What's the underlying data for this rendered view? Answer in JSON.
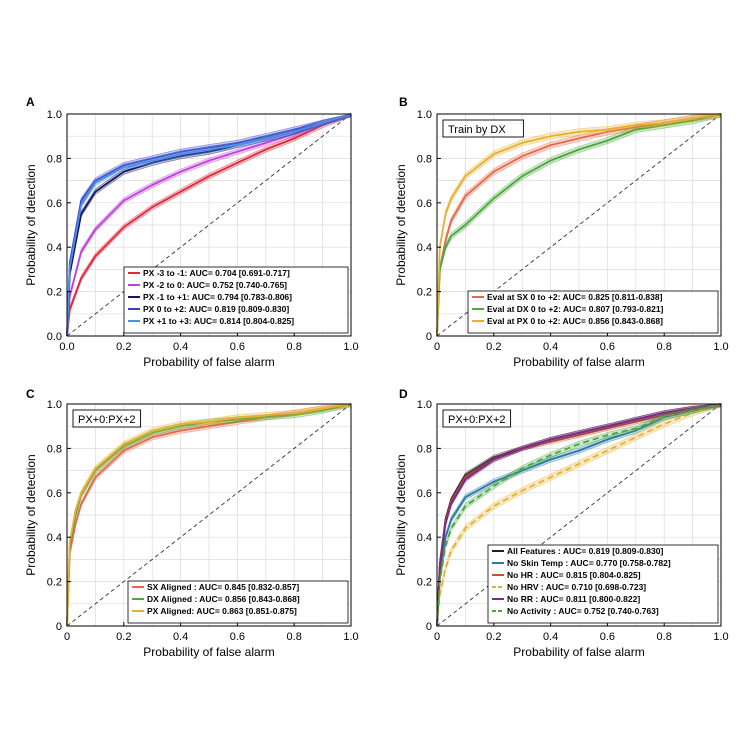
{
  "chart_data": [
    {
      "panel": "A",
      "type": "line",
      "inset_label": "",
      "xlabel": "Probability of false alarm",
      "ylabel": "Probability of detection",
      "xlim": [
        0,
        1
      ],
      "ylim": [
        0,
        1
      ],
      "xticks": [
        "0.0",
        "0.2",
        "0.4",
        "0.6",
        "0.8",
        "1.0"
      ],
      "yticks": [
        "0.0",
        "0.2",
        "0.4",
        "0.6",
        "0.8",
        "1.0"
      ],
      "grid": true,
      "legend": "bottom-right",
      "series": [
        {
          "name": "PX -3 to -1: AUC= 0.704 [0.691-0.717]",
          "color": "#e0283c",
          "band": 0.012,
          "dashed": false,
          "x": [
            0,
            0.01,
            0.05,
            0.1,
            0.2,
            0.3,
            0.4,
            0.5,
            0.6,
            0.7,
            0.8,
            0.9,
            1.0
          ],
          "y": [
            0,
            0.12,
            0.26,
            0.36,
            0.49,
            0.58,
            0.65,
            0.72,
            0.78,
            0.84,
            0.89,
            0.95,
            1.0
          ]
        },
        {
          "name": "PX -2 to 0: AUC= 0.752 [0.740-0.765]",
          "color": "#c040d8",
          "band": 0.012,
          "dashed": false,
          "x": [
            0,
            0.01,
            0.05,
            0.1,
            0.2,
            0.3,
            0.4,
            0.5,
            0.6,
            0.7,
            0.8,
            0.9,
            1.0
          ],
          "y": [
            0,
            0.18,
            0.38,
            0.48,
            0.61,
            0.68,
            0.74,
            0.79,
            0.83,
            0.87,
            0.91,
            0.96,
            1.0
          ]
        },
        {
          "name": "PX -1 to +1: AUC= 0.794 [0.783-0.806]",
          "color": "#141464",
          "band": 0.012,
          "dashed": false,
          "x": [
            0,
            0.01,
            0.05,
            0.1,
            0.2,
            0.3,
            0.4,
            0.5,
            0.6,
            0.7,
            0.8,
            0.9,
            1.0
          ],
          "y": [
            0,
            0.28,
            0.55,
            0.65,
            0.74,
            0.78,
            0.81,
            0.83,
            0.86,
            0.89,
            0.92,
            0.96,
            1.0
          ]
        },
        {
          "name": "PX 0 to +2: AUC= 0.819 [0.809-0.830]",
          "color": "#3c3cc8",
          "band": 0.012,
          "dashed": false,
          "x": [
            0,
            0.01,
            0.05,
            0.1,
            0.2,
            0.3,
            0.4,
            0.5,
            0.6,
            0.7,
            0.8,
            0.9,
            1.0
          ],
          "y": [
            0,
            0.33,
            0.61,
            0.7,
            0.77,
            0.8,
            0.83,
            0.85,
            0.87,
            0.9,
            0.93,
            0.96,
            1.0
          ]
        },
        {
          "name": "PX +1 to +3: AUC= 0.814 [0.804-0.825]",
          "color": "#4a90e8",
          "band": 0.012,
          "dashed": false,
          "x": [
            0,
            0.01,
            0.05,
            0.1,
            0.2,
            0.3,
            0.4,
            0.5,
            0.6,
            0.7,
            0.8,
            0.9,
            1.0
          ],
          "y": [
            0,
            0.31,
            0.59,
            0.69,
            0.76,
            0.79,
            0.82,
            0.84,
            0.86,
            0.89,
            0.92,
            0.96,
            1.0
          ]
        }
      ]
    },
    {
      "panel": "B",
      "type": "line",
      "inset_label": "Train by DX",
      "xlabel": "Probability of false alarm",
      "ylabel": "Probability of detection",
      "xlim": [
        0,
        1
      ],
      "ylim": [
        0,
        1
      ],
      "xticks": [
        "0",
        "0.2",
        "0.4",
        "0.6",
        "0.8",
        "1.0"
      ],
      "yticks": [
        "0",
        "0.2",
        "0.4",
        "0.6",
        "0.8",
        "1.0"
      ],
      "grid": true,
      "legend": "bottom-right",
      "series": [
        {
          "name": "Eval at SX 0 to +2: AUC= 0.825 [0.811-0.838]",
          "color": "#e8684a",
          "band": 0.014,
          "dashed": false,
          "x": [
            0,
            0.01,
            0.03,
            0.05,
            0.1,
            0.2,
            0.3,
            0.4,
            0.5,
            0.6,
            0.7,
            0.8,
            0.9,
            1.0
          ],
          "y": [
            0,
            0.3,
            0.43,
            0.52,
            0.63,
            0.74,
            0.81,
            0.86,
            0.89,
            0.92,
            0.94,
            0.96,
            0.98,
            1.0
          ]
        },
        {
          "name": "Eval at DX 0 to +2: AUC= 0.807 [0.793-0.821]",
          "color": "#4aa83c",
          "band": 0.014,
          "dashed": false,
          "x": [
            0,
            0.01,
            0.03,
            0.05,
            0.1,
            0.2,
            0.3,
            0.4,
            0.5,
            0.6,
            0.7,
            0.8,
            0.9,
            1.0
          ],
          "y": [
            0,
            0.3,
            0.4,
            0.45,
            0.5,
            0.62,
            0.72,
            0.79,
            0.84,
            0.88,
            0.93,
            0.95,
            0.97,
            1.0
          ]
        },
        {
          "name": "Eval at PX 0 to +2: AUC= 0.856 [0.843-0.868]",
          "color": "#e8b030",
          "band": 0.014,
          "dashed": false,
          "x": [
            0,
            0.01,
            0.03,
            0.05,
            0.1,
            0.2,
            0.3,
            0.4,
            0.5,
            0.6,
            0.7,
            0.8,
            0.9,
            1.0
          ],
          "y": [
            0,
            0.4,
            0.55,
            0.62,
            0.72,
            0.82,
            0.87,
            0.9,
            0.92,
            0.93,
            0.95,
            0.96,
            0.98,
            1.0
          ]
        }
      ]
    },
    {
      "panel": "C",
      "type": "line",
      "inset_label": "PX+0:PX+2",
      "xlabel": "Probability of false alarm",
      "ylabel": "Probability of detection",
      "xlim": [
        0,
        1
      ],
      "ylim": [
        0,
        1
      ],
      "xticks": [
        "0",
        "0.2",
        "0.4",
        "0.6",
        "0.8",
        "1.0"
      ],
      "yticks": [
        "0",
        "0.2",
        "0.4",
        "0.6",
        "0.8",
        "1.0"
      ],
      "grid": true,
      "legend": "bottom-right",
      "series": [
        {
          "name": "SX Aligned : AUC= 0.845 [0.832-0.857]",
          "color": "#e8684a",
          "band": 0.012,
          "dashed": false,
          "x": [
            0,
            0.01,
            0.03,
            0.05,
            0.1,
            0.2,
            0.3,
            0.4,
            0.5,
            0.6,
            0.7,
            0.8,
            0.9,
            1.0
          ],
          "y": [
            0,
            0.33,
            0.46,
            0.55,
            0.67,
            0.79,
            0.85,
            0.88,
            0.9,
            0.92,
            0.94,
            0.96,
            0.98,
            1.0
          ]
        },
        {
          "name": "DX Aligned : AUC= 0.856 [0.843-0.868]",
          "color": "#4aa83c",
          "band": 0.012,
          "dashed": false,
          "x": [
            0,
            0.01,
            0.03,
            0.05,
            0.1,
            0.2,
            0.3,
            0.4,
            0.5,
            0.6,
            0.7,
            0.8,
            0.9,
            1.0
          ],
          "y": [
            0,
            0.36,
            0.5,
            0.59,
            0.7,
            0.81,
            0.87,
            0.9,
            0.92,
            0.93,
            0.94,
            0.95,
            0.97,
            1.0
          ]
        },
        {
          "name": "PX Aligned: AUC= 0.863 [0.851-0.875]",
          "color": "#e8b030",
          "band": 0.012,
          "dashed": false,
          "x": [
            0,
            0.01,
            0.03,
            0.05,
            0.1,
            0.2,
            0.3,
            0.4,
            0.5,
            0.6,
            0.7,
            0.8,
            0.9,
            1.0
          ],
          "y": [
            0,
            0.38,
            0.52,
            0.6,
            0.71,
            0.82,
            0.88,
            0.91,
            0.92,
            0.94,
            0.95,
            0.96,
            0.98,
            1.0
          ]
        }
      ]
    },
    {
      "panel": "D",
      "type": "line",
      "inset_label": "PX+0:PX+2",
      "xlabel": "Probability of false alarm",
      "ylabel": "Probability of detection",
      "xlim": [
        0,
        1
      ],
      "ylim": [
        0,
        1
      ],
      "xticks": [
        "0",
        "0.2",
        "0.4",
        "0.6",
        "0.8",
        "1.0"
      ],
      "yticks": [
        "0",
        "0.2",
        "0.4",
        "0.6",
        "0.8",
        "1.0"
      ],
      "grid": true,
      "legend": "bottom-right",
      "series": [
        {
          "name": "All Features : AUC= 0.819 [0.809-0.830]",
          "color": "#202020",
          "band": 0.01,
          "dashed": false,
          "x": [
            0,
            0.01,
            0.03,
            0.05,
            0.1,
            0.2,
            0.3,
            0.4,
            0.5,
            0.6,
            0.7,
            0.8,
            0.9,
            1.0
          ],
          "y": [
            0,
            0.28,
            0.48,
            0.57,
            0.68,
            0.76,
            0.8,
            0.84,
            0.87,
            0.9,
            0.93,
            0.96,
            0.98,
            1.0
          ]
        },
        {
          "name": "No Skin Temp : AUC= 0.770 [0.758-0.782]",
          "color": "#2a7aa8",
          "band": 0.012,
          "dashed": false,
          "x": [
            0,
            0.01,
            0.03,
            0.05,
            0.1,
            0.2,
            0.3,
            0.4,
            0.5,
            0.6,
            0.7,
            0.8,
            0.9,
            1.0
          ],
          "y": [
            0,
            0.22,
            0.4,
            0.48,
            0.58,
            0.65,
            0.7,
            0.75,
            0.79,
            0.84,
            0.88,
            0.94,
            0.97,
            1.0
          ]
        },
        {
          "name": "No HR : AUC= 0.815 [0.804-0.825]",
          "color": "#c8502a",
          "band": 0.01,
          "dashed": false,
          "x": [
            0,
            0.01,
            0.03,
            0.05,
            0.1,
            0.2,
            0.3,
            0.4,
            0.5,
            0.6,
            0.7,
            0.8,
            0.9,
            1.0
          ],
          "y": [
            0,
            0.27,
            0.47,
            0.56,
            0.67,
            0.75,
            0.8,
            0.83,
            0.86,
            0.89,
            0.92,
            0.95,
            0.98,
            1.0
          ]
        },
        {
          "name": "No HRV : AUC= 0.710 [0.698-0.723]",
          "color": "#e8b030",
          "band": 0.014,
          "dashed": true,
          "x": [
            0,
            0.01,
            0.03,
            0.05,
            0.1,
            0.2,
            0.3,
            0.4,
            0.5,
            0.6,
            0.7,
            0.8,
            0.9,
            1.0
          ],
          "y": [
            0,
            0.14,
            0.26,
            0.34,
            0.44,
            0.54,
            0.61,
            0.67,
            0.73,
            0.79,
            0.85,
            0.91,
            0.96,
            1.0
          ]
        },
        {
          "name": "No RR : AUC= 0.811 [0.800-0.822]",
          "color": "#7a2a8a",
          "band": 0.01,
          "dashed": false,
          "x": [
            0,
            0.01,
            0.03,
            0.05,
            0.1,
            0.2,
            0.3,
            0.4,
            0.5,
            0.6,
            0.7,
            0.8,
            0.9,
            1.0
          ],
          "y": [
            0,
            0.26,
            0.46,
            0.55,
            0.66,
            0.75,
            0.8,
            0.84,
            0.87,
            0.9,
            0.93,
            0.96,
            0.98,
            1.0
          ]
        },
        {
          "name": "No Activity : AUC= 0.752 [0.740-0.763]",
          "color": "#4aa83c",
          "band": 0.012,
          "dashed": true,
          "x": [
            0,
            0.01,
            0.03,
            0.05,
            0.1,
            0.2,
            0.3,
            0.4,
            0.5,
            0.6,
            0.7,
            0.8,
            0.9,
            1.0
          ],
          "y": [
            0,
            0.2,
            0.36,
            0.44,
            0.54,
            0.63,
            0.71,
            0.77,
            0.82,
            0.86,
            0.89,
            0.94,
            0.97,
            1.0
          ]
        }
      ]
    }
  ]
}
